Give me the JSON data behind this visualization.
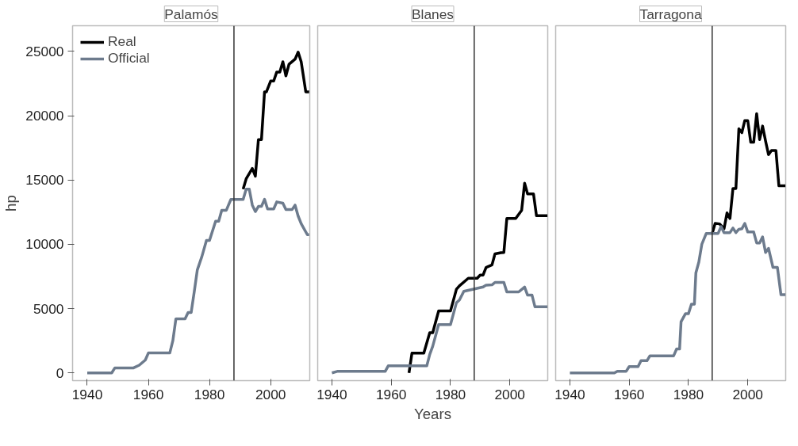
{
  "chart_data": [
    {
      "type": "line",
      "title": "Palamós",
      "ylabel": "hp",
      "xlim": [
        1935.2,
        2012.8
      ],
      "ylim": [
        -600,
        27000
      ],
      "xticks": [
        1940,
        1960,
        1980,
        2000
      ],
      "yticks": [
        0,
        5000,
        10000,
        15000,
        20000,
        25000
      ],
      "grid": false,
      "legend": "top left",
      "line_style": "solid",
      "marker": "none",
      "ref_lines": [
        {
          "axis": "x",
          "value": 1988,
          "color": "#333333"
        }
      ],
      "series": [
        {
          "name": "Real",
          "color": "#000000",
          "x": [
            1991,
            1992,
            1994,
            1995,
            1996,
            1997,
            1998,
            1998.6,
            2000,
            2001,
            2002,
            2003,
            2004,
            2005,
            2006,
            2008,
            2009,
            2010,
            2011.5,
            2012.6
          ],
          "values": [
            14300,
            15100,
            15900,
            15300,
            18150,
            18150,
            21850,
            21850,
            22700,
            22700,
            23400,
            23400,
            24200,
            23100,
            24000,
            24400,
            24950,
            24200,
            21850,
            21850
          ]
        },
        {
          "name": "Official",
          "color": "#6d7b8d",
          "x": [
            1940,
            1948,
            1949,
            1955,
            1957,
            1959,
            1960,
            1967,
            1968,
            1969,
            1972,
            1973,
            1974,
            1975,
            1976,
            1977.5,
            1979,
            1980,
            1982,
            1983,
            1984,
            1985.5,
            1987,
            1991,
            1992,
            1993,
            1994,
            1995,
            1996,
            1997,
            1998,
            1999,
            2001,
            2002,
            2004,
            2005,
            2007,
            2008,
            2009,
            2010,
            2012,
            2012.6
          ],
          "values": [
            0,
            0,
            380,
            380,
            600,
            1000,
            1550,
            1550,
            2500,
            4200,
            4200,
            4700,
            4700,
            6300,
            8000,
            9050,
            10300,
            10300,
            11800,
            11800,
            12650,
            12650,
            13500,
            13500,
            14300,
            14300,
            13050,
            12550,
            12950,
            12950,
            13500,
            12750,
            12750,
            13300,
            13200,
            12700,
            12700,
            13050,
            12200,
            11600,
            10750,
            10750
          ]
        }
      ]
    },
    {
      "type": "line",
      "title": "Blanes",
      "xlabel": "Years",
      "xlim": [
        1935.2,
        2012.8
      ],
      "ylim": [
        -600,
        27000
      ],
      "xticks": [
        1940,
        1960,
        1980,
        2000
      ],
      "tick_labels": "x",
      "grid": false,
      "line_style": "solid",
      "marker": "none",
      "ref_lines": [
        {
          "axis": "x",
          "value": 1988,
          "color": "#333333"
        }
      ],
      "series": [
        {
          "color": "#000000",
          "x": [
            1966,
            1967,
            1971,
            1973,
            1974,
            1976,
            1980,
            1982,
            1983,
            1986,
            1989,
            1990,
            1991,
            1992,
            1994,
            1995,
            1997,
            1998,
            1999,
            2002,
            2004,
            2005,
            2006,
            2008,
            2009,
            2012.7
          ],
          "values": [
            0,
            1540,
            1540,
            3130,
            3130,
            4820,
            4820,
            6510,
            6770,
            7360,
            7360,
            7610,
            7610,
            8200,
            8400,
            9260,
            9350,
            9370,
            12010,
            12010,
            12650,
            14760,
            13920,
            13920,
            12230,
            12230
          ]
        },
        {
          "color": "#6d7b8d",
          "x": [
            1940,
            1942,
            1958,
            1959,
            1972,
            1973,
            1974,
            1976,
            1980,
            1982,
            1983,
            1984.5,
            1991,
            1992,
            1994,
            1995,
            1998,
            1999,
            2003,
            2005,
            2006,
            2007.5,
            2008.5,
            2012.7
          ],
          "values": [
            0,
            130,
            130,
            550,
            550,
            1440,
            2070,
            3760,
            3760,
            5460,
            5670,
            6350,
            6680,
            6830,
            6850,
            7040,
            7040,
            6300,
            6300,
            6680,
            6050,
            6050,
            5140,
            5140
          ]
        }
      ]
    },
    {
      "type": "line",
      "title": "Tarragona",
      "xlim": [
        1935.2,
        2012.8
      ],
      "ylim": [
        -600,
        27000
      ],
      "xticks": [
        1940,
        1960,
        1980,
        2000
      ],
      "tick_labels": "x",
      "grid": false,
      "line_style": "solid",
      "marker": "none",
      "ref_lines": [
        {
          "axis": "x",
          "value": 1988,
          "color": "#333333"
        }
      ],
      "series": [
        {
          "color": "#000000",
          "x": [
            1988,
            1989,
            1990.5,
            1992,
            1993,
            1994,
            1995,
            1996,
            1997,
            1998,
            1999,
            2000,
            2001,
            2002,
            2003,
            2004,
            2005,
            2006,
            2007,
            2008,
            2009.5,
            2010.5,
            2012.7
          ],
          "values": [
            10850,
            11630,
            11590,
            11210,
            12440,
            12010,
            14340,
            14340,
            18990,
            18680,
            19630,
            19630,
            17940,
            17940,
            20160,
            18150,
            19200,
            18040,
            16980,
            17300,
            17300,
            14550,
            14550
          ]
        },
        {
          "color": "#6d7b8d",
          "x": [
            1940,
            1955,
            1956,
            1959,
            1960,
            1963,
            1964,
            1966,
            1967,
            1975,
            1976,
            1977,
            1977.5,
            1979,
            1980,
            1981,
            1982,
            1982.5,
            1983.5,
            1984.5,
            1986,
            1990,
            1991,
            1992,
            1994,
            1995,
            1996,
            1997,
            1998,
            1999,
            2000,
            2002,
            2003,
            2004,
            2005,
            2006,
            2007,
            2008.5,
            2010,
            2011.2,
            2012.7
          ],
          "values": [
            0,
            0,
            130,
            130,
            490,
            490,
            950,
            950,
            1330,
            1330,
            1860,
            1860,
            3980,
            4610,
            4610,
            5350,
            5350,
            7780,
            8630,
            10000,
            10850,
            10850,
            11380,
            10910,
            10910,
            11270,
            10910,
            11170,
            11210,
            11630,
            10960,
            10960,
            10110,
            10110,
            10580,
            9370,
            9690,
            8210,
            8210,
            6090,
            6090
          ]
        }
      ]
    }
  ]
}
